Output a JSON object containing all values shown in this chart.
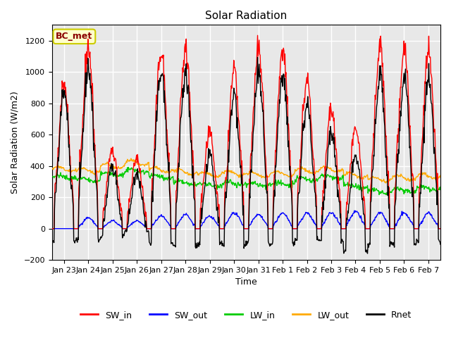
{
  "title": "Solar Radiation",
  "ylabel": "Solar Radiation (W/m2)",
  "xlabel": "Time",
  "station_label": "BC_met",
  "ylim": [
    -200,
    1300
  ],
  "yticks": [
    -200,
    0,
    200,
    400,
    600,
    800,
    1000,
    1200
  ],
  "xtick_labels": [
    "Jan 23",
    "Jan 24",
    "Jan 25",
    "Jan 26",
    "Jan 27",
    "Jan 28",
    "Jan 29",
    "Jan 30",
    "Jan 31",
    "Feb 1",
    "Feb 2",
    "Feb 3",
    "Feb 4",
    "Feb 5",
    "Feb 6",
    "Feb 7"
  ],
  "legend": [
    "SW_in",
    "SW_out",
    "LW_in",
    "LW_out",
    "Rnet"
  ],
  "legend_colors": [
    "#ff0000",
    "#0000ff",
    "#00cc00",
    "#ffaa00",
    "#000000"
  ],
  "line_widths": [
    1.0,
    1.0,
    1.0,
    1.0,
    1.0
  ],
  "background_color": "#ffffff",
  "plot_bg_color": "#e8e8e8",
  "grid_color": "#ffffff",
  "n_days": 16,
  "pts_per_day": 48,
  "SW_in_peaks": [
    940,
    1160,
    500,
    450,
    1140,
    1150,
    610,
    1010,
    1150,
    1160,
    960,
    760,
    650,
    1170,
    1160,
    1150
  ],
  "SW_out_peaks": [
    0,
    70,
    50,
    50,
    80,
    90,
    80,
    100,
    90,
    100,
    100,
    100,
    110,
    100,
    100,
    100
  ],
  "LW_in_base": [
    330,
    310,
    350,
    370,
    330,
    290,
    280,
    290,
    280,
    285,
    315,
    330,
    270,
    235,
    245,
    260
  ],
  "LW_out_base": [
    380,
    370,
    400,
    420,
    375,
    360,
    345,
    355,
    345,
    350,
    370,
    380,
    340,
    315,
    325,
    335
  ],
  "Rnet_night": [
    -80,
    -70,
    -50,
    -15,
    -100,
    -110,
    -100,
    -110,
    -90,
    -90,
    -70,
    -80,
    -150,
    -100,
    -100,
    -80
  ]
}
